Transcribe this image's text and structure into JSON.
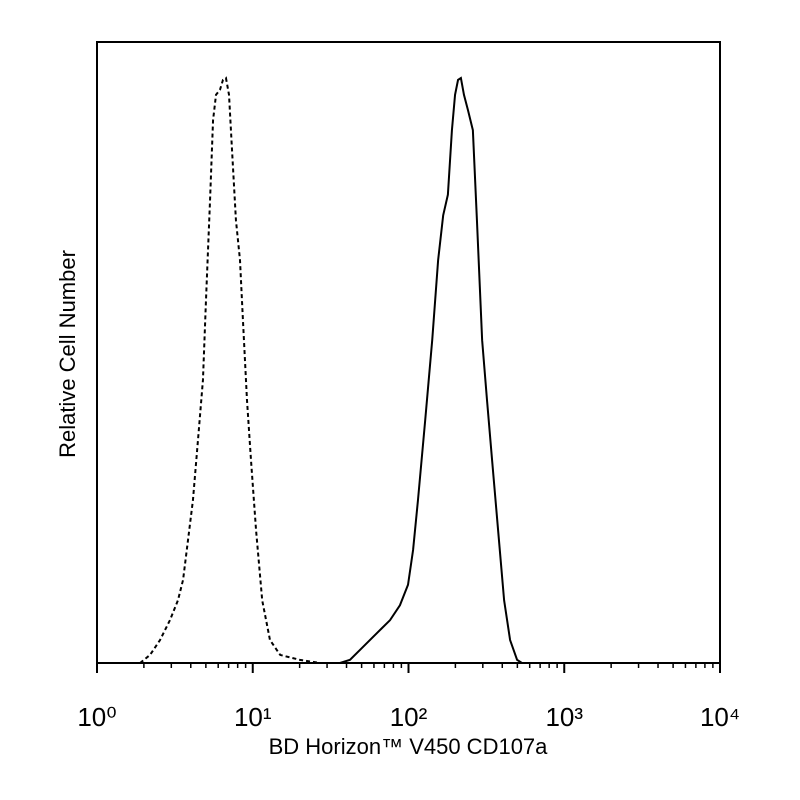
{
  "chart_data": {
    "type": "line",
    "xlabel": "BD Horizon™ V450 CD107a",
    "ylabel": "Relative Cell Number",
    "xscale": "log",
    "xlim": [
      1,
      10000
    ],
    "ylim": [
      0,
      100
    ],
    "xticks": [
      {
        "value": 1,
        "label": "10⁰"
      },
      {
        "value": 10,
        "label": "10¹"
      },
      {
        "value": 100,
        "label": "10²"
      },
      {
        "value": 1000,
        "label": "10³"
      },
      {
        "value": 10000,
        "label": "10⁴"
      }
    ],
    "xminorticks": [
      2,
      3,
      4,
      5,
      6,
      7,
      8,
      9,
      20,
      30,
      40,
      50,
      60,
      70,
      80,
      90,
      200,
      300,
      400,
      500,
      600,
      700,
      800,
      900,
      2000,
      3000,
      4000,
      5000,
      6000,
      7000,
      8000,
      9000
    ],
    "series": [
      {
        "color": "#000000",
        "dashed": true,
        "x": [
          1.89,
          2.19,
          2.54,
          2.94,
          3.31,
          3.57,
          3.84,
          4.13,
          4.45,
          4.79,
          5.01,
          5.32,
          5.56,
          5.81,
          6.16,
          6.44,
          6.73,
          7.04,
          7.36,
          7.8,
          8.28,
          8.65,
          9.18,
          9.74,
          10.5,
          11.5,
          12.9,
          15.0,
          20.1,
          27.0,
          10000
        ],
        "values": [
          0,
          1.3,
          3.7,
          6.9,
          10.1,
          13.4,
          19.8,
          26.2,
          35.9,
          45.6,
          58.5,
          74.6,
          87.4,
          91.5,
          92.3,
          93.9,
          94.2,
          91.5,
          82.6,
          71.3,
          64.9,
          55.2,
          42.4,
          32.7,
          21.4,
          10.1,
          3.7,
          1.3,
          0.5,
          0,
          0
        ]
      },
      {
        "color": "#000000",
        "dashed": false,
        "x": [
          1,
          36.3,
          42.1,
          48.8,
          60.9,
          76.1,
          88.1,
          99.3,
          107,
          115,
          128,
          142,
          155,
          167,
          179,
          190,
          199,
          208,
          217,
          227,
          241,
          259,
          275,
          297,
          319,
          344,
          376,
          411,
          449,
          498,
          535,
          10000
        ],
        "values": [
          0,
          0,
          0.5,
          2.1,
          4.5,
          6.9,
          9.3,
          12.6,
          18.2,
          26.2,
          39.1,
          52.0,
          64.9,
          72.1,
          75.4,
          85.8,
          91.5,
          93.9,
          94.2,
          91.5,
          89.0,
          85.8,
          71.3,
          52.0,
          42.4,
          32.7,
          21.4,
          10.1,
          3.7,
          0.5,
          0,
          0
        ]
      }
    ]
  }
}
